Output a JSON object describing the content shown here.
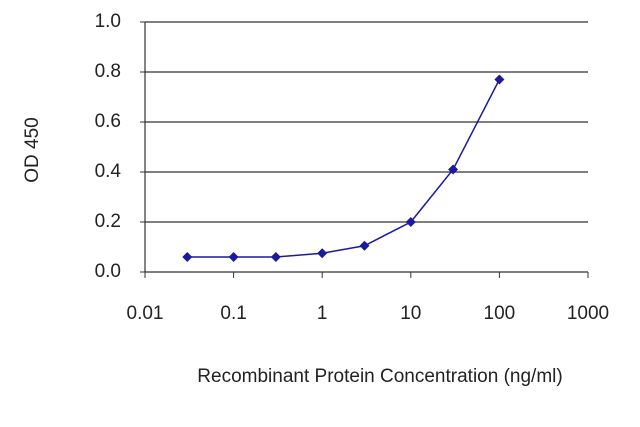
{
  "chart_data": {
    "type": "line",
    "x_label": "Recombinant Protein Concentration (ng/ml)",
    "y_label": "OD 450",
    "x": [
      0.03,
      0.1,
      0.3,
      1,
      3,
      10,
      30,
      100
    ],
    "values": [
      0.06,
      0.06,
      0.06,
      0.075,
      0.105,
      0.2,
      0.41,
      0.77
    ],
    "color": "#1a1a9c",
    "xscale": "log",
    "xlim": [
      0.01,
      1000
    ],
    "xticks": [
      0.01,
      0.1,
      1,
      10,
      100,
      1000
    ],
    "ylim": [
      0,
      1
    ],
    "yticks": [
      {
        "value": 0,
        "label": "0.0"
      },
      0.2,
      0.4,
      0.6,
      0.8,
      {
        "value": 1,
        "label": "1.0"
      }
    ],
    "grid": true
  }
}
